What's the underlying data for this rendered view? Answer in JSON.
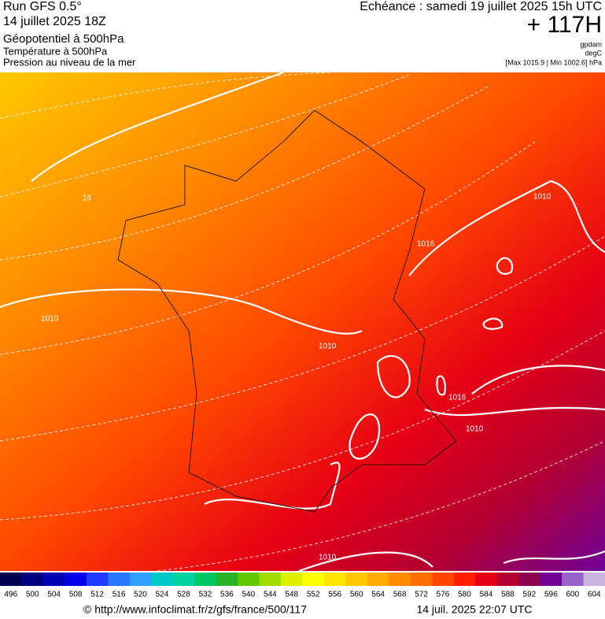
{
  "header": {
    "left": [
      "Run GFS 0.5°",
      "14 juillet 2025 18Z",
      "Géopotentiel à 500hPa",
      "Température à 500hPa",
      "Pression au niveau de la mer"
    ],
    "right": [
      "Echéance : samedi 19 juillet 2025 15h UTC",
      "+ 117H",
      "gpdam",
      "degC",
      "[Max 1015.9 | Min 1002.6] hPa"
    ]
  },
  "map": {
    "contour_labels": [
      "16",
      "1010",
      "1010",
      "1016",
      "1010",
      "1016",
      "1010",
      "1010"
    ]
  },
  "colorbar": {
    "labels": [
      496,
      500,
      504,
      508,
      512,
      516,
      520,
      524,
      528,
      532,
      536,
      540,
      544,
      548,
      552,
      556,
      560,
      564,
      568,
      572,
      576,
      580,
      584,
      588,
      592,
      596,
      600,
      604
    ],
    "colors": [
      "#000050",
      "#000080",
      "#0000b4",
      "#0000e6",
      "#1e3cff",
      "#2878ff",
      "#30a0ff",
      "#00c8c8",
      "#00d2a0",
      "#00c864",
      "#28b428",
      "#64c800",
      "#a0dc00",
      "#dcf000",
      "#ffff00",
      "#ffe600",
      "#ffc800",
      "#ffaa00",
      "#ff8c00",
      "#ff6e00",
      "#ff4600",
      "#ff1e00",
      "#e60014",
      "#b40032",
      "#8c0050",
      "#6e0096",
      "#9664c8",
      "#c8b4dc"
    ]
  },
  "footer": {
    "source": "© http://www.infoclimat.fr/z/gfs/france/500/117",
    "date": "14 juil. 2025 22:07 UTC"
  }
}
